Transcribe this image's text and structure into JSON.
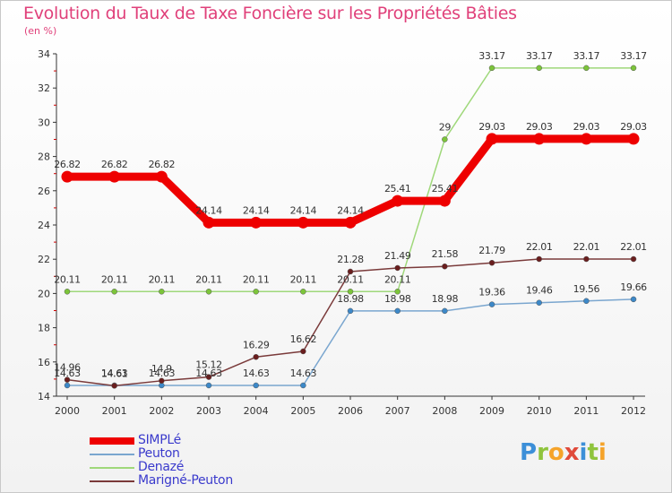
{
  "header": {
    "title": "Evolution du Taux de Taxe Foncière sur les Propriétés Bâties",
    "subtitle": "(en %)"
  },
  "logo": {
    "text": "Proxiti"
  },
  "chart_data": {
    "type": "line",
    "title": "Evolution du Taux de Taxe Foncière sur les Propriétés Bâties",
    "ylabel": "(en %)",
    "xlabel": "",
    "ylim": [
      14,
      34
    ],
    "y_ticks": [
      14,
      16,
      18,
      20,
      22,
      24,
      26,
      28,
      30,
      32,
      34
    ],
    "grid": false,
    "legend_position": "bottom-left",
    "x": [
      "2000",
      "2001",
      "2002",
      "2003",
      "2004",
      "2005",
      "2006",
      "2007",
      "2008",
      "2009",
      "2010",
      "2011",
      "2012"
    ],
    "series": [
      {
        "name": "SIMPLé",
        "color": "#ee0000",
        "values": [
          26.82,
          26.82,
          26.82,
          24.14,
          24.14,
          24.14,
          24.14,
          25.41,
          25.41,
          29.03,
          29.03,
          29.03,
          29.03
        ],
        "labels": [
          "26.82",
          "26.82",
          "26.82",
          "24.14",
          "24.14",
          "24.14",
          "24.14",
          "25.41",
          "25.41",
          "29.03",
          "29.03",
          "29.03",
          "29.03"
        ]
      },
      {
        "name": "Peuton",
        "color": "#7aa6cf",
        "marker": "#3c88c8",
        "values": [
          14.63,
          14.63,
          14.63,
          14.63,
          14.63,
          14.63,
          18.98,
          18.98,
          18.98,
          19.36,
          19.46,
          19.56,
          19.66
        ],
        "labels": [
          "14.63",
          "14.63",
          "14.63",
          "14.63",
          "14.63",
          "14.63",
          "18.98",
          "18.98",
          "18.98",
          "19.36",
          "19.46",
          "19.56",
          "19.66"
        ]
      },
      {
        "name": "Denazé",
        "color": "#9fd87a",
        "marker": "#7cc43a",
        "values": [
          20.11,
          20.11,
          20.11,
          20.11,
          20.11,
          20.11,
          20.11,
          20.11,
          29,
          33.17,
          33.17,
          33.17,
          33.17
        ],
        "labels": [
          "20.11",
          "20.11",
          "20.11",
          "20.11",
          "20.11",
          "20.11",
          "20.11",
          "20.11",
          "29",
          "33.17",
          "33.17",
          "33.17",
          "33.17"
        ]
      },
      {
        "name": "Marigné-Peuton",
        "color": "#7a3a3a",
        "marker": "#6a1e1e",
        "values": [
          14.96,
          14.61,
          14.9,
          15.12,
          16.29,
          16.62,
          21.28,
          21.49,
          21.58,
          21.79,
          22.01,
          22.01,
          22.01
        ],
        "labels": [
          "14.96",
          "14.61",
          "14.9",
          "15.12",
          "16.29",
          "16.62",
          "21.28",
          "21.49",
          "21.58",
          "21.79",
          "22.01",
          "22.01",
          "22.01"
        ]
      }
    ]
  }
}
